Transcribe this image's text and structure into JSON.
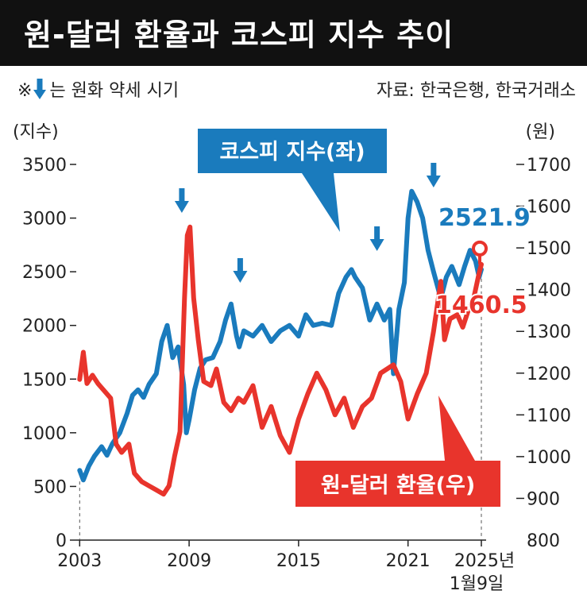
{
  "header": {
    "title": "원-달러 환율과 코스피 지수 추이"
  },
  "note": {
    "prefix": "※",
    "text": "는 원화 약세 시기",
    "icon": "down-arrow-icon"
  },
  "source": "자료: 한국은행, 한국거래소",
  "colors": {
    "kospi": "#1a7bbd",
    "fx": "#e8342c",
    "title_bg": "#111111",
    "axis": "#222222"
  },
  "chart_data": {
    "type": "line",
    "left_unit": "(지수)",
    "right_unit": "(원)",
    "x_ticks": [
      "2003",
      "2009",
      "2015",
      "2021"
    ],
    "x_end_label": [
      "2025년",
      "1월9일"
    ],
    "x_range": [
      2002.9,
      2025.02
    ],
    "left_axis": {
      "range": [
        0,
        3500
      ],
      "ticks": [
        0,
        500,
        1000,
        1500,
        2000,
        2500,
        3000,
        3500
      ]
    },
    "right_axis": {
      "range": [
        800,
        1700
      ],
      "ticks": [
        800,
        900,
        1000,
        1100,
        1200,
        1300,
        1400,
        1500,
        1600,
        1700
      ]
    },
    "series": [
      {
        "name": "코스피 지수(좌)",
        "axis": "left",
        "color": "#1a7bbd",
        "x": [
          2003.0,
          2003.2,
          2003.5,
          2003.8,
          2004.2,
          2004.5,
          2004.8,
          2005.2,
          2005.6,
          2005.9,
          2006.2,
          2006.5,
          2006.8,
          2007.2,
          2007.5,
          2007.8,
          2008.1,
          2008.4,
          2008.7,
          2008.85,
          2009.0,
          2009.3,
          2009.6,
          2009.9,
          2010.3,
          2010.7,
          2011.0,
          2011.3,
          2011.6,
          2011.75,
          2012.0,
          2012.5,
          2013.0,
          2013.5,
          2014.0,
          2014.5,
          2015.0,
          2015.4,
          2015.8,
          2016.3,
          2016.8,
          2017.2,
          2017.6,
          2017.9,
          2018.1,
          2018.5,
          2018.9,
          2019.3,
          2019.7,
          2020.0,
          2020.2,
          2020.5,
          2020.8,
          2021.0,
          2021.2,
          2021.5,
          2021.8,
          2022.1,
          2022.4,
          2022.8,
          2023.1,
          2023.4,
          2023.8,
          2024.1,
          2024.4,
          2024.7,
          2024.9,
          2025.02
        ],
        "values": [
          650,
          560,
          690,
          780,
          870,
          790,
          900,
          1000,
          1180,
          1350,
          1400,
          1330,
          1450,
          1550,
          1850,
          2000,
          1700,
          1800,
          1450,
          1000,
          1120,
          1400,
          1600,
          1680,
          1700,
          1850,
          2050,
          2200,
          1900,
          1800,
          1950,
          1900,
          2000,
          1850,
          1950,
          2000,
          1900,
          2100,
          2000,
          2020,
          2000,
          2300,
          2450,
          2520,
          2450,
          2350,
          2050,
          2200,
          2050,
          2150,
          1550,
          2150,
          2400,
          3000,
          3250,
          3150,
          3000,
          2700,
          2500,
          2250,
          2450,
          2550,
          2380,
          2550,
          2700,
          2600,
          2450,
          2521.9
        ]
      },
      {
        "name": "원-달러 환율(우)",
        "axis": "right",
        "color": "#e8342c",
        "x": [
          2003.0,
          2003.2,
          2003.4,
          2003.7,
          2004.0,
          2004.3,
          2004.7,
          2005.0,
          2005.3,
          2005.7,
          2006.0,
          2006.4,
          2006.8,
          2007.2,
          2007.6,
          2007.9,
          2008.2,
          2008.5,
          2008.75,
          2008.9,
          2009.05,
          2009.25,
          2009.5,
          2009.8,
          2010.2,
          2010.5,
          2010.9,
          2011.3,
          2011.7,
          2012.0,
          2012.5,
          2013.0,
          2013.5,
          2014.0,
          2014.5,
          2015.0,
          2015.5,
          2016.0,
          2016.5,
          2017.0,
          2017.5,
          2018.0,
          2018.5,
          2019.0,
          2019.5,
          2020.2,
          2020.6,
          2021.0,
          2021.5,
          2022.0,
          2022.4,
          2022.8,
          2023.0,
          2023.3,
          2023.7,
          2024.0,
          2024.3,
          2024.6,
          2024.9,
          2025.02
        ],
        "values": [
          1185,
          1250,
          1175,
          1195,
          1175,
          1160,
          1140,
          1030,
          1010,
          1030,
          960,
          940,
          930,
          920,
          910,
          930,
          1000,
          1060,
          1380,
          1530,
          1550,
          1380,
          1280,
          1180,
          1170,
          1210,
          1130,
          1110,
          1140,
          1130,
          1170,
          1070,
          1120,
          1050,
          1010,
          1090,
          1150,
          1200,
          1160,
          1100,
          1140,
          1070,
          1120,
          1140,
          1200,
          1220,
          1180,
          1090,
          1150,
          1200,
          1300,
          1420,
          1280,
          1330,
          1340,
          1310,
          1350,
          1380,
          1440,
          1460.5
        ]
      }
    ],
    "annotations": {
      "kospi_label": "코스피 지수(좌)",
      "fx_label": "원-달러 환율(우)",
      "kospi_last": "2521.9",
      "fx_last": "1460.5"
    },
    "weak_won_markers_x": [
      2008.6,
      2011.8,
      2019.3,
      2022.4
    ]
  }
}
